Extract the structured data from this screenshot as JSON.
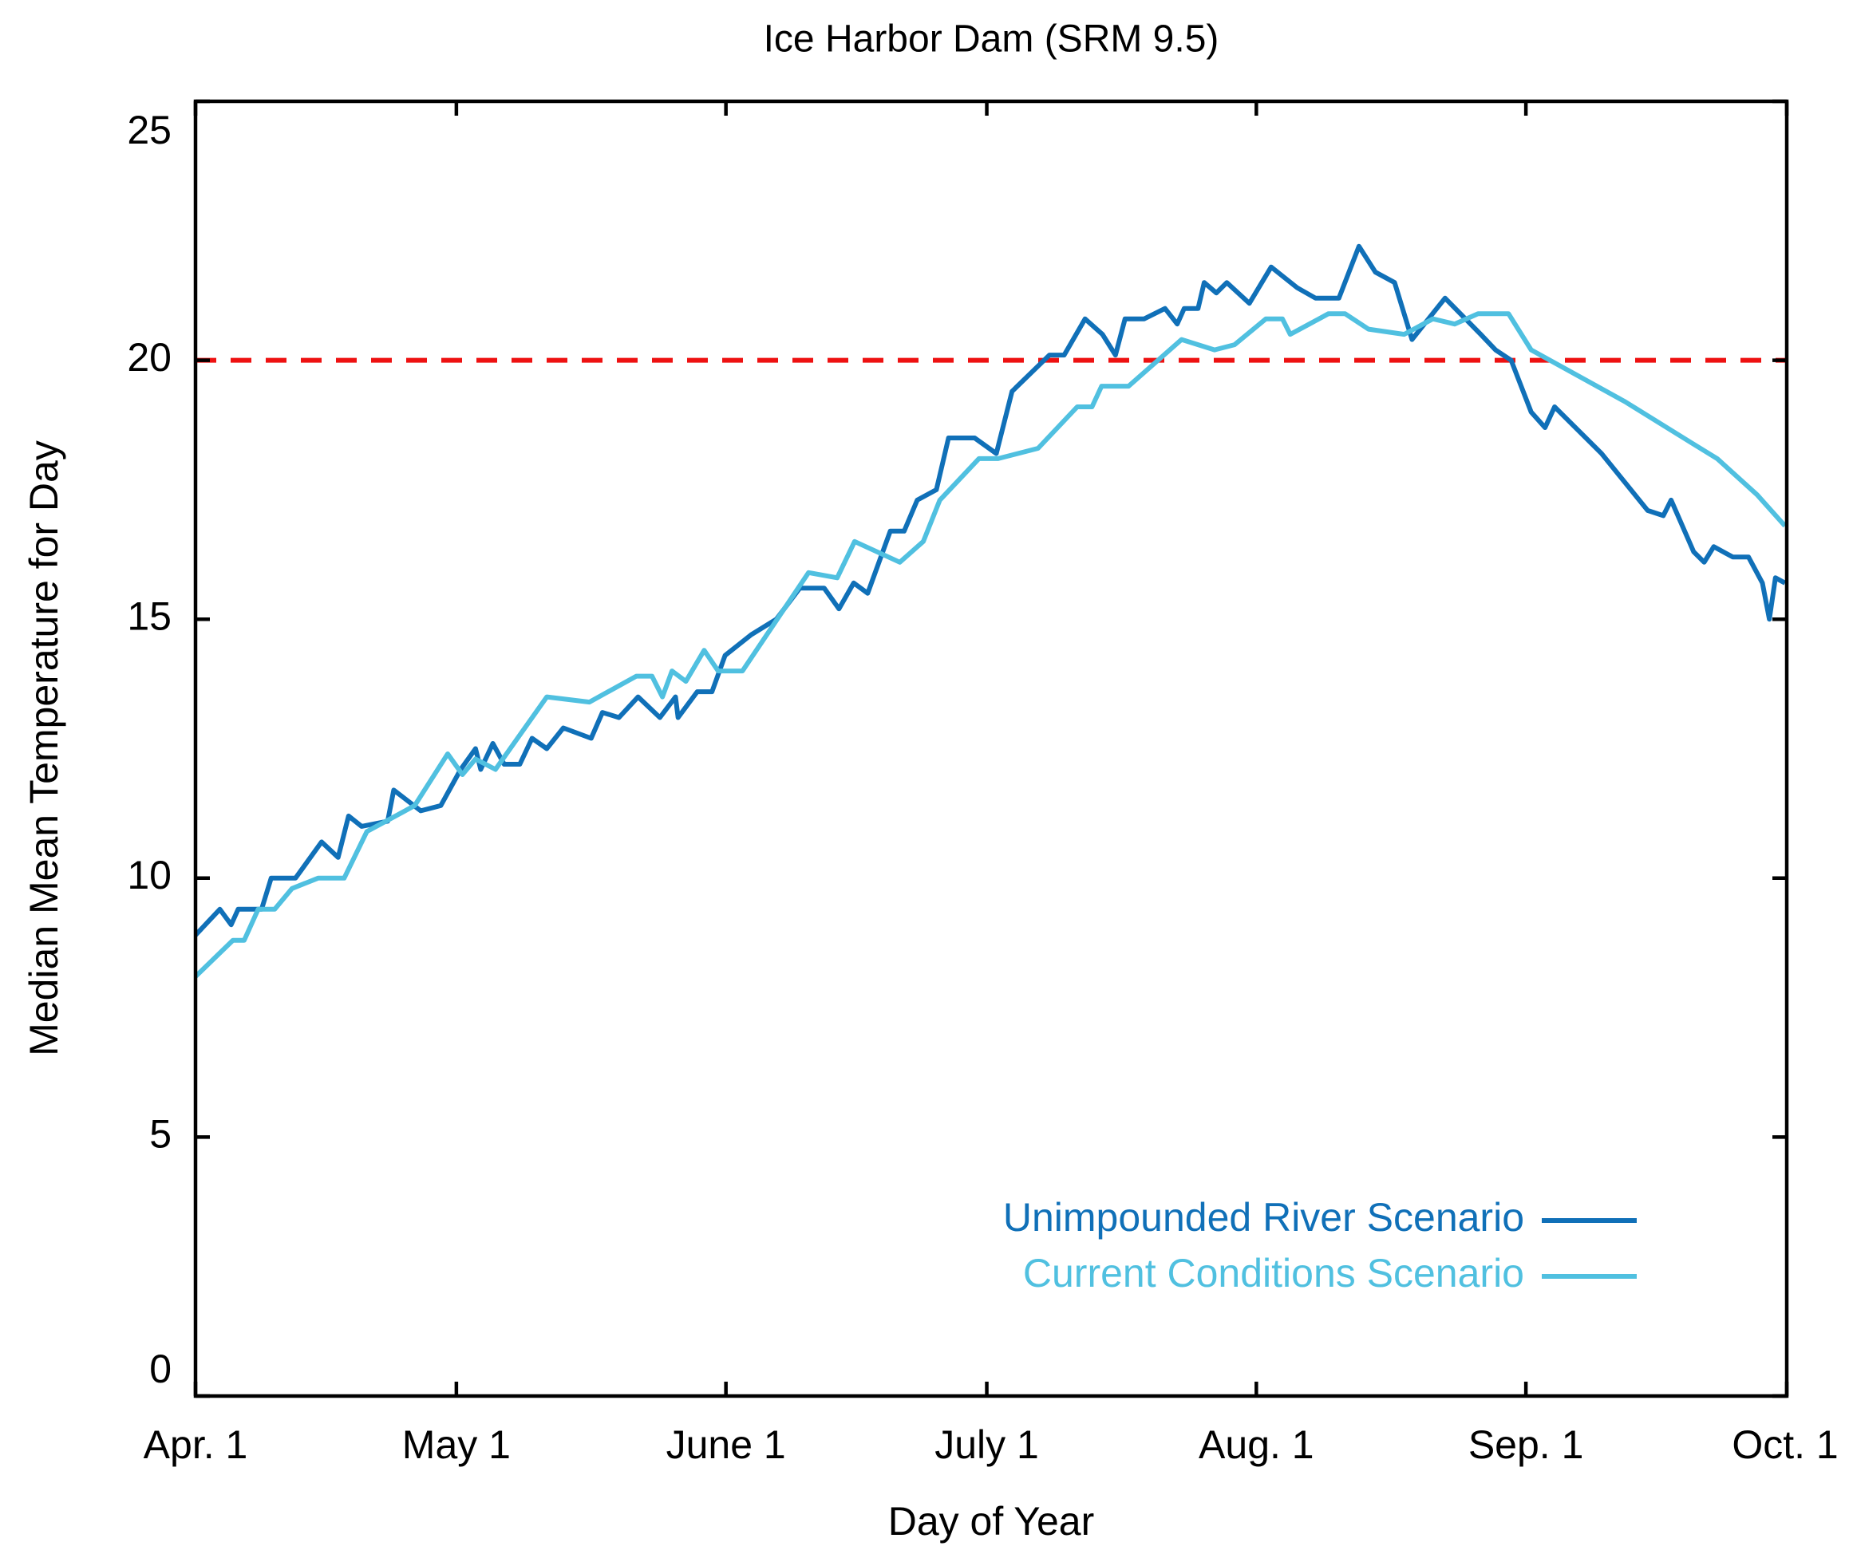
{
  "chart_data": {
    "type": "line",
    "title": "Ice Harbor Dam (SRM 9.5)",
    "x_label": "Day of Year",
    "y_label": "Median Mean Temperature for Day",
    "xlim": [
      0,
      183
    ],
    "xticks": [
      {
        "value": 0,
        "label": "Apr. 1"
      },
      {
        "value": 30,
        "label": "May 1"
      },
      {
        "value": 61,
        "label": "June 1"
      },
      {
        "value": 91,
        "label": "July 1"
      },
      {
        "value": 122,
        "label": "Aug. 1"
      },
      {
        "value": 153,
        "label": "Sep. 1"
      },
      {
        "value": 183,
        "label": "Oct. 1"
      }
    ],
    "ylim": [
      0,
      25
    ],
    "yticks": [
      0,
      5,
      10,
      15,
      20,
      25
    ],
    "reference_line": {
      "value": 20,
      "color": "#ee1111"
    },
    "legend": "lower right",
    "series": [
      {
        "name": "Unimpounded River Scenario",
        "color": "#1070b8",
        "x": [
          0,
          2.8,
          4.1,
          4.9,
          7.6,
          8.7,
          11.5,
          14.5,
          16.4,
          17.6,
          19.1,
          22.1,
          22.8,
          25.9,
          28.2,
          30.5,
          32.2,
          32.8,
          34.2,
          35.5,
          37.3,
          38.7,
          40.4,
          42.3,
          45.5,
          46.8,
          48.7,
          50.9,
          53.4,
          55.2,
          55.5,
          57.7,
          59.4,
          60.9,
          63.9,
          66.8,
          69.5,
          72.3,
          74.0,
          75.7,
          77.3,
          79.9,
          81.5,
          83.0,
          85.2,
          86.6,
          89.6,
          92.1,
          93.9,
          98.2,
          99.9,
          102.3,
          104.3,
          105.8,
          106.9,
          109.1,
          111.5,
          112.9,
          113.7,
          115.3,
          116.0,
          117.4,
          118.6,
          121.2,
          123.7,
          126.7,
          128.8,
          131.5,
          133.8,
          135.7,
          137.9,
          139.9,
          143.7,
          147.8,
          149.5,
          151.3,
          153.6,
          155.2,
          156.3,
          161.7,
          167.0,
          168.8,
          169.7,
          172.3,
          173.5,
          174.6,
          176.8,
          178.6,
          180.2,
          181.0,
          181.7,
          182.8
        ],
        "values": [
          8.9,
          9.4,
          9.1,
          9.4,
          9.4,
          10.0,
          10.0,
          10.7,
          10.4,
          11.2,
          11.0,
          11.1,
          11.7,
          11.3,
          11.4,
          12.1,
          12.5,
          12.1,
          12.6,
          12.2,
          12.2,
          12.7,
          12.5,
          12.9,
          12.7,
          13.2,
          13.1,
          13.5,
          13.1,
          13.5,
          13.1,
          13.6,
          13.6,
          14.3,
          14.7,
          15.0,
          15.6,
          15.6,
          15.2,
          15.7,
          15.5,
          16.7,
          16.7,
          17.3,
          17.5,
          18.5,
          18.5,
          18.2,
          19.4,
          20.1,
          20.1,
          20.8,
          20.5,
          20.1,
          20.8,
          20.8,
          21.0,
          20.7,
          21.0,
          21.0,
          21.5,
          21.3,
          21.5,
          21.1,
          21.8,
          21.4,
          21.2,
          21.2,
          22.2,
          21.7,
          21.5,
          20.4,
          21.2,
          20.5,
          20.2,
          20.0,
          19.0,
          18.7,
          19.1,
          18.2,
          17.1,
          17.0,
          17.3,
          16.3,
          16.1,
          16.4,
          16.2,
          16.2,
          15.7,
          15.0,
          15.8,
          15.7
        ]
      },
      {
        "name": "Current Conditions Scenario",
        "color": "#50c0e0",
        "x": [
          0,
          4.3,
          5.6,
          7.2,
          9.1,
          11.1,
          14.1,
          17.1,
          19.7,
          25.2,
          29.0,
          30.7,
          32.2,
          34.5,
          40.4,
          45.3,
          50.7,
          52.5,
          53.7,
          54.8,
          56.4,
          58.5,
          60.1,
          62.9,
          70.5,
          73.8,
          75.8,
          81.0,
          83.7,
          85.6,
          90.1,
          92.3,
          96.9,
          101.4,
          103.1,
          104.2,
          107.3,
          113.4,
          117.2,
          119.5,
          123.1,
          125.0,
          125.9,
          128.1,
          130.3,
          132.2,
          134.9,
          139.0,
          142.3,
          144.8,
          147.5,
          151.0,
          153.6,
          164.4,
          172.1,
          175.0,
          179.6,
          182.8
        ],
        "values": [
          8.1,
          8.8,
          8.8,
          9.4,
          9.4,
          9.8,
          10.0,
          10.0,
          10.9,
          11.4,
          12.4,
          12.0,
          12.3,
          12.1,
          13.5,
          13.4,
          13.9,
          13.9,
          13.5,
          14.0,
          13.8,
          14.4,
          14.0,
          14.0,
          15.9,
          15.8,
          16.5,
          16.1,
          16.5,
          17.3,
          18.1,
          18.1,
          18.3,
          19.1,
          19.1,
          19.5,
          19.5,
          20.4,
          20.2,
          20.3,
          20.8,
          20.8,
          20.5,
          20.7,
          20.9,
          20.9,
          20.6,
          20.5,
          20.8,
          20.7,
          20.9,
          20.9,
          20.2,
          19.2,
          18.4,
          18.1,
          17.4,
          16.8
        ]
      }
    ]
  }
}
